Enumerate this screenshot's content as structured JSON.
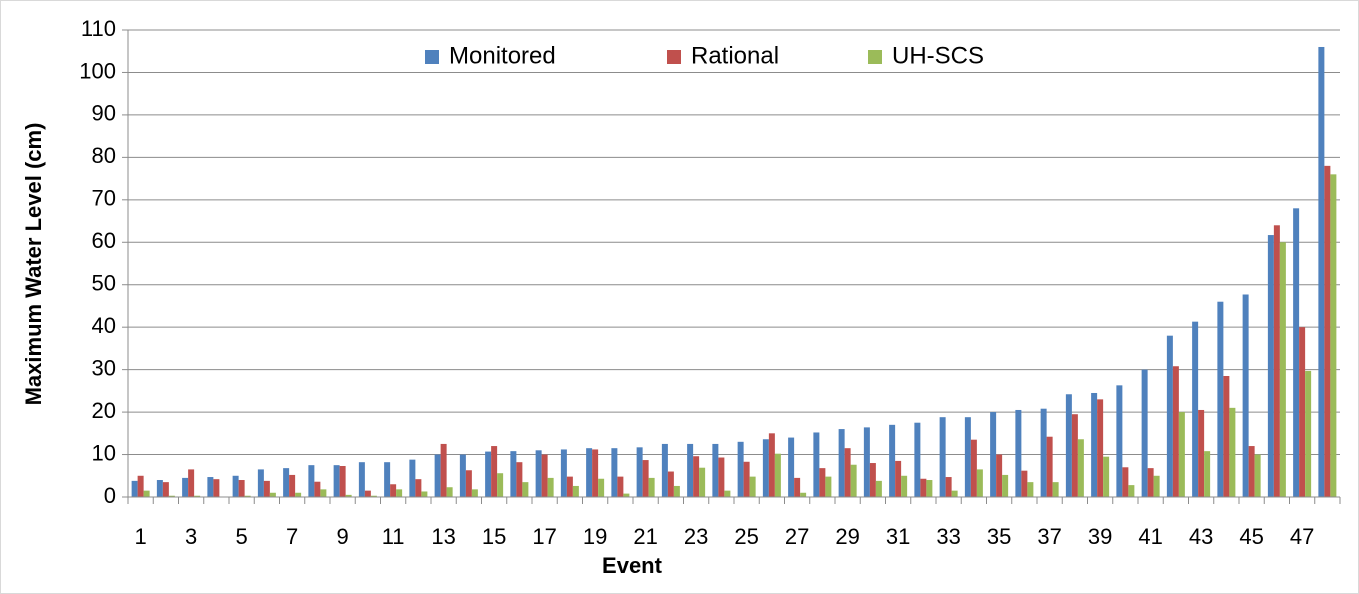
{
  "chart_data": {
    "type": "bar",
    "x_label": "Event",
    "y_label": "Maximum Water Level (cm)",
    "categories": [
      "1",
      null,
      "3",
      null,
      "5",
      null,
      "7",
      null,
      "9",
      null,
      "11",
      null,
      "13",
      null,
      "15",
      null,
      "17",
      null,
      "19",
      null,
      "21",
      null,
      "23",
      null,
      "25",
      null,
      "27",
      null,
      "29",
      null,
      "31",
      null,
      "33",
      null,
      "35",
      null,
      "37",
      null,
      "39",
      null,
      "41",
      null,
      "43",
      null,
      "45",
      null,
      "47",
      null
    ],
    "series": [
      {
        "name": "Monitored",
        "color": "#4f81bd",
        "values": [
          3.8,
          4.0,
          4.5,
          4.7,
          5.0,
          6.5,
          6.8,
          7.5,
          7.5,
          8.2,
          8.2,
          8.8,
          10,
          10,
          10.7,
          10.8,
          11,
          11.2,
          11.5,
          11.5,
          11.7,
          12.5,
          12.5,
          12.5,
          13,
          13.6,
          14,
          15.2,
          16,
          16.4,
          17,
          17.5,
          18.8,
          18.8,
          20,
          20.5,
          20.8,
          24.2,
          24.5,
          26.3,
          30,
          38,
          41.3,
          46,
          47.7,
          61.7,
          68,
          106
        ]
      },
      {
        "name": "Rational",
        "color": "#c0504d",
        "values": [
          5,
          3.5,
          6.5,
          4.2,
          4,
          3.8,
          5.2,
          3.6,
          7.3,
          1.5,
          3,
          4.2,
          12.5,
          6.3,
          12,
          8.2,
          10,
          4.8,
          11.2,
          4.8,
          8.7,
          6,
          9.6,
          9.3,
          8.3,
          15,
          4.5,
          6.8,
          11.5,
          8,
          8.5,
          4.3,
          4.7,
          13.5,
          10,
          6.2,
          14.2,
          19.5,
          23,
          7,
          6.8,
          30.8,
          20.5,
          28.5,
          12,
          64,
          40,
          78
        ]
      },
      {
        "name": "UH-SCS",
        "color": "#9bbb59",
        "values": [
          1.5,
          0.3,
          0.3,
          0,
          0.3,
          1,
          1,
          1.8,
          0.5,
          0.3,
          1.8,
          1.3,
          2.3,
          1.8,
          5.6,
          3.5,
          4.5,
          2.6,
          4.3,
          0.8,
          4.5,
          2.6,
          6.9,
          1.5,
          4.8,
          10.2,
          1,
          4.8,
          7.6,
          3.8,
          5,
          4,
          1.5,
          6.5,
          5.2,
          3.5,
          3.5,
          13.6,
          9.5,
          2.8,
          5,
          20,
          10.8,
          21,
          10,
          60,
          29.7,
          76
        ]
      }
    ],
    "ylim": [
      0,
      110
    ],
    "yticks": [
      0,
      10,
      20,
      30,
      40,
      50,
      60,
      70,
      80,
      90,
      100,
      110
    ],
    "grid": true,
    "legend": "top"
  }
}
